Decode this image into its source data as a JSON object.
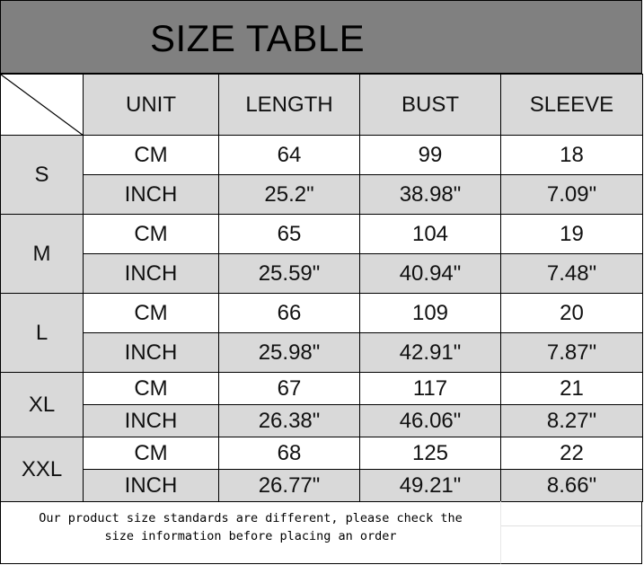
{
  "title": "SIZE TABLE",
  "headers": [
    "UNIT",
    "LENGTH",
    "BUST",
    "SLEEVE"
  ],
  "rows": [
    {
      "size": "S",
      "cm": {
        "unit": "CM",
        "length": "64",
        "bust": "99",
        "sleeve": "18"
      },
      "inch": {
        "unit": "INCH",
        "length": "25.2\"",
        "bust": "38.98\"",
        "sleeve": "7.09\""
      }
    },
    {
      "size": "M",
      "cm": {
        "unit": "CM",
        "length": "65",
        "bust": "104",
        "sleeve": "19"
      },
      "inch": {
        "unit": "INCH",
        "length": "25.59\"",
        "bust": "40.94\"",
        "sleeve": "7.48\""
      }
    },
    {
      "size": "L",
      "cm": {
        "unit": "CM",
        "length": "66",
        "bust": "109",
        "sleeve": "20"
      },
      "inch": {
        "unit": "INCH",
        "length": "25.98\"",
        "bust": "42.91\"",
        "sleeve": "7.87\""
      }
    },
    {
      "size": "XL",
      "cm": {
        "unit": "CM",
        "length": "67",
        "bust": "117",
        "sleeve": "21"
      },
      "inch": {
        "unit": "INCH",
        "length": "26.38\"",
        "bust": "46.06\"",
        "sleeve": "8.27\""
      }
    },
    {
      "size": "XXL",
      "cm": {
        "unit": "CM",
        "length": "68",
        "bust": "125",
        "sleeve": "22"
      },
      "inch": {
        "unit": "INCH",
        "length": "26.77\"",
        "bust": "49.21\"",
        "sleeve": "8.66\""
      }
    }
  ],
  "note": {
    "line1": "Our product size standards are different, please check the",
    "line2": "size information before placing an order"
  },
  "colors": {
    "title_bg": "#808080",
    "shaded_cell": "#d9d9d9"
  }
}
